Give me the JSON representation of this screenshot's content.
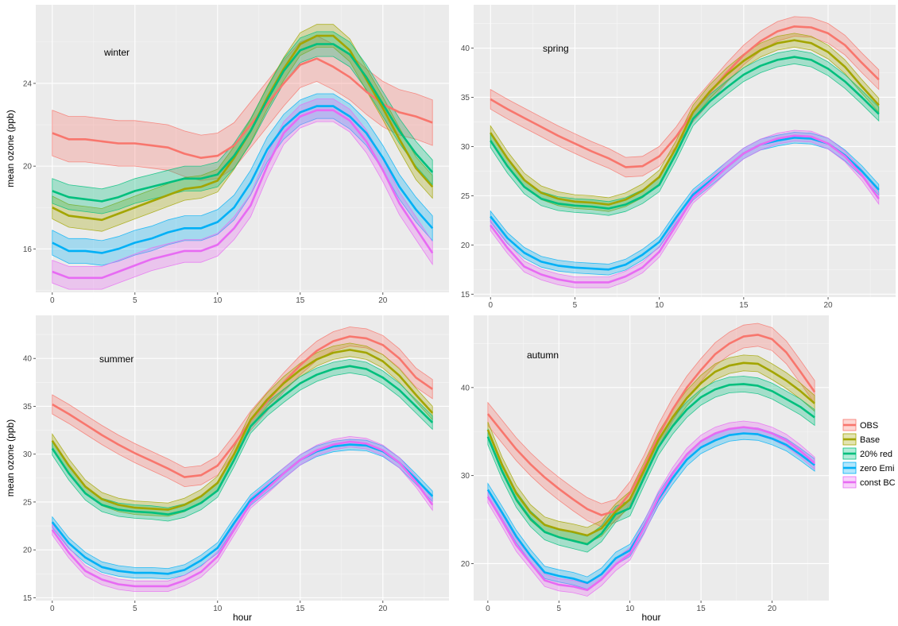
{
  "legend": {
    "series": [
      {
        "name": "OBS",
        "color": "#F8766D"
      },
      {
        "name": "Base",
        "color": "#A3A500"
      },
      {
        "name": "20% red",
        "color": "#00BF7D"
      },
      {
        "name": "zero Emi",
        "color": "#00B0F6"
      },
      {
        "name": "const BC",
        "color": "#E76BF3"
      }
    ]
  },
  "chart_data": [
    {
      "type": "line",
      "panel": "winter",
      "annotation": "winter",
      "ylabel": "mean ozone (ppb)",
      "xlabel": "",
      "xlim": [
        -1,
        24
      ],
      "ylim": [
        13.9,
        27.8
      ],
      "xticks": [
        0,
        5,
        10,
        15,
        20
      ],
      "yticks": [
        16,
        20,
        24
      ],
      "grid": true,
      "x": [
        0,
        1,
        2,
        3,
        4,
        5,
        6,
        7,
        8,
        9,
        10,
        11,
        12,
        13,
        14,
        15,
        16,
        17,
        18,
        19,
        20,
        21,
        22,
        23
      ],
      "series": [
        {
          "name": "OBS",
          "values": [
            21.6,
            21.3,
            21.3,
            21.2,
            21.1,
            21.1,
            21.0,
            20.9,
            20.6,
            20.4,
            20.5,
            21.0,
            22.0,
            23.0,
            24.0,
            24.9,
            25.2,
            24.8,
            24.3,
            23.6,
            23.0,
            22.6,
            22.4,
            22.1
          ],
          "band": 1.1
        },
        {
          "name": "Base",
          "values": [
            18.0,
            17.6,
            17.5,
            17.4,
            17.7,
            18.0,
            18.3,
            18.6,
            18.9,
            19.0,
            19.3,
            20.4,
            21.7,
            23.3,
            24.7,
            25.9,
            26.3,
            26.3,
            25.6,
            24.2,
            22.8,
            21.3,
            19.9,
            19.0
          ],
          "band": 0.55
        },
        {
          "name": "20% red",
          "values": [
            18.8,
            18.5,
            18.4,
            18.3,
            18.5,
            18.8,
            19.0,
            19.2,
            19.4,
            19.4,
            19.6,
            20.5,
            21.7,
            23.2,
            24.6,
            25.6,
            25.9,
            25.9,
            25.4,
            24.3,
            23.0,
            21.7,
            20.6,
            19.7
          ],
          "band": 0.6
        },
        {
          "name": "zero Emi",
          "values": [
            16.3,
            15.9,
            15.9,
            15.8,
            16.0,
            16.3,
            16.5,
            16.8,
            17.0,
            17.0,
            17.3,
            18.0,
            19.2,
            20.8,
            21.9,
            22.6,
            22.9,
            22.9,
            22.4,
            21.6,
            20.4,
            19.0,
            17.9,
            17.0
          ],
          "band": 0.6
        },
        {
          "name": "const BC",
          "values": [
            14.9,
            14.6,
            14.6,
            14.6,
            14.9,
            15.2,
            15.5,
            15.7,
            15.9,
            15.9,
            16.2,
            17.0,
            18.1,
            20.0,
            21.6,
            22.4,
            22.7,
            22.7,
            22.2,
            21.2,
            19.8,
            18.2,
            17.0,
            15.8
          ],
          "band": 0.55
        }
      ]
    },
    {
      "type": "line",
      "panel": "spring",
      "annotation": "spring",
      "ylabel": "",
      "xlabel": "",
      "xlim": [
        -1,
        24
      ],
      "ylim": [
        14.7,
        44.4
      ],
      "xticks": [
        0,
        5,
        10,
        15,
        20
      ],
      "yticks": [
        15,
        20,
        25,
        30,
        35,
        40
      ],
      "grid": true,
      "x": [
        0,
        1,
        2,
        3,
        4,
        5,
        6,
        7,
        8,
        9,
        10,
        11,
        12,
        13,
        14,
        15,
        16,
        17,
        18,
        19,
        20,
        21,
        22,
        23
      ],
      "series": [
        {
          "name": "OBS",
          "values": [
            34.8,
            33.8,
            32.9,
            32.0,
            31.1,
            30.3,
            29.5,
            28.8,
            27.9,
            28.0,
            29.0,
            31.0,
            33.5,
            35.5,
            37.5,
            39.3,
            40.7,
            41.7,
            42.2,
            42.1,
            41.5,
            40.3,
            38.5,
            36.8
          ],
          "band": 1.0
        },
        {
          "name": "Base",
          "values": [
            31.4,
            28.8,
            26.6,
            25.3,
            24.7,
            24.4,
            24.3,
            24.1,
            24.6,
            25.5,
            26.9,
            29.9,
            33.5,
            35.6,
            37.3,
            38.7,
            39.8,
            40.5,
            40.8,
            40.5,
            39.6,
            38.1,
            36.1,
            34.2
          ],
          "band": 0.7
        },
        {
          "name": "20% red",
          "values": [
            30.6,
            28.0,
            25.9,
            24.7,
            24.2,
            24.0,
            23.9,
            23.7,
            24.1,
            24.9,
            26.1,
            29.3,
            32.8,
            34.6,
            36.0,
            37.3,
            38.2,
            38.8,
            39.1,
            38.8,
            37.9,
            36.6,
            35.0,
            33.3
          ],
          "band": 0.7
        },
        {
          "name": "zero Emi",
          "values": [
            22.9,
            20.7,
            19.2,
            18.3,
            17.9,
            17.7,
            17.6,
            17.5,
            18.0,
            19.0,
            20.3,
            22.8,
            25.1,
            26.5,
            27.9,
            29.3,
            30.2,
            30.6,
            30.9,
            30.8,
            30.3,
            29.1,
            27.5,
            25.6
          ],
          "band": 0.55
        },
        {
          "name": "const BC",
          "values": [
            22.0,
            19.7,
            17.8,
            17.0,
            16.5,
            16.2,
            16.2,
            16.2,
            16.8,
            17.7,
            19.3,
            22.0,
            24.8,
            26.3,
            27.9,
            29.3,
            30.2,
            30.8,
            31.1,
            31.0,
            30.3,
            29.0,
            27.1,
            24.7
          ],
          "band": 0.55
        }
      ]
    },
    {
      "type": "line",
      "panel": "summer",
      "annotation": "summer",
      "ylabel": "mean ozone (ppb)",
      "xlabel": "hour",
      "xlim": [
        -1,
        24
      ],
      "ylim": [
        14.7,
        44.5
      ],
      "xticks": [
        0,
        5,
        10,
        15,
        20
      ],
      "yticks": [
        15,
        20,
        25,
        30,
        35,
        40
      ],
      "grid": true,
      "x": [
        0,
        1,
        2,
        3,
        4,
        5,
        6,
        7,
        8,
        9,
        10,
        11,
        12,
        13,
        14,
        15,
        16,
        17,
        18,
        19,
        20,
        21,
        22,
        23
      ],
      "series": [
        {
          "name": "OBS",
          "values": [
            35.2,
            34.2,
            33.1,
            32.0,
            31.0,
            30.1,
            29.3,
            28.5,
            27.6,
            27.8,
            28.8,
            31.0,
            33.5,
            35.5,
            37.5,
            39.3,
            40.8,
            41.8,
            42.3,
            42.1,
            41.4,
            40.0,
            38.0,
            36.8
          ],
          "band": 1.0
        },
        {
          "name": "Base",
          "values": [
            31.4,
            28.8,
            26.6,
            25.3,
            24.7,
            24.4,
            24.3,
            24.2,
            24.7,
            25.6,
            27.0,
            30.0,
            33.6,
            35.7,
            37.4,
            38.8,
            39.9,
            40.6,
            40.9,
            40.6,
            39.7,
            38.2,
            36.2,
            34.3
          ],
          "band": 0.7
        },
        {
          "name": "20% red",
          "values": [
            30.6,
            28.0,
            25.9,
            24.7,
            24.2,
            24.0,
            23.9,
            23.7,
            24.1,
            24.9,
            26.2,
            29.4,
            32.9,
            34.7,
            36.1,
            37.4,
            38.3,
            38.9,
            39.2,
            38.9,
            38.0,
            36.7,
            35.0,
            33.3
          ],
          "band": 0.7
        },
        {
          "name": "zero Emi",
          "values": [
            22.9,
            20.7,
            19.2,
            18.2,
            17.8,
            17.6,
            17.6,
            17.5,
            17.9,
            18.9,
            20.2,
            22.8,
            25.2,
            26.6,
            28.0,
            29.4,
            30.3,
            30.8,
            31.0,
            30.9,
            30.3,
            29.1,
            27.4,
            25.6
          ],
          "band": 0.55
        },
        {
          "name": "const BC",
          "values": [
            22.1,
            19.7,
            17.8,
            16.9,
            16.4,
            16.2,
            16.2,
            16.2,
            16.8,
            17.7,
            19.3,
            22.1,
            24.9,
            26.4,
            28.0,
            29.4,
            30.4,
            31.0,
            31.3,
            31.1,
            30.4,
            29.1,
            27.1,
            24.7
          ],
          "band": 0.55
        }
      ]
    },
    {
      "type": "line",
      "panel": "autumn",
      "annotation": "autumn",
      "ylabel": "",
      "xlabel": "hour",
      "xlim": [
        -1,
        24
      ],
      "ylim": [
        15.8,
        48.2
      ],
      "xticks": [
        0,
        5,
        10,
        15,
        20
      ],
      "yticks": [
        20,
        30,
        40
      ],
      "grid": true,
      "x": [
        0,
        1,
        2,
        3,
        4,
        5,
        6,
        7,
        8,
        9,
        10,
        11,
        12,
        13,
        14,
        15,
        16,
        17,
        18,
        19,
        20,
        21,
        22,
        23
      ],
      "series": [
        {
          "name": "OBS",
          "values": [
            37.0,
            35.0,
            33.0,
            31.3,
            29.8,
            28.5,
            27.3,
            26.2,
            25.5,
            26.0,
            28.0,
            31.0,
            34.5,
            37.5,
            40.0,
            42.0,
            43.8,
            45.0,
            45.8,
            46.0,
            45.5,
            44.0,
            41.8,
            39.5
          ],
          "band": 1.3
        },
        {
          "name": "Base",
          "values": [
            35.2,
            31.2,
            28.0,
            25.8,
            24.4,
            23.9,
            23.6,
            23.2,
            24.0,
            25.9,
            27.3,
            30.6,
            34.0,
            36.6,
            38.8,
            40.5,
            41.8,
            42.5,
            42.8,
            42.7,
            41.8,
            40.8,
            39.6,
            38.2
          ],
          "band": 0.9
        },
        {
          "name": "20% red",
          "values": [
            34.4,
            30.5,
            27.3,
            25.1,
            23.6,
            23.0,
            22.6,
            22.2,
            23.4,
            25.6,
            26.3,
            29.8,
            33.2,
            35.6,
            37.5,
            38.9,
            39.8,
            40.3,
            40.4,
            40.2,
            39.6,
            38.7,
            37.8,
            36.6
          ],
          "band": 0.9
        },
        {
          "name": "zero Emi",
          "values": [
            28.4,
            25.8,
            23.1,
            20.9,
            19.0,
            18.6,
            18.3,
            17.8,
            18.8,
            20.6,
            21.5,
            24.2,
            27.3,
            29.7,
            31.8,
            33.2,
            34.0,
            34.6,
            34.8,
            34.7,
            34.2,
            33.5,
            32.4,
            31.2
          ],
          "band": 0.7
        },
        {
          "name": "const BC",
          "values": [
            27.6,
            24.9,
            22.1,
            20.1,
            18.1,
            17.6,
            17.4,
            17.0,
            18.2,
            19.9,
            21.1,
            24.1,
            27.5,
            30.2,
            32.4,
            33.9,
            34.8,
            35.3,
            35.5,
            35.3,
            34.8,
            34.0,
            32.8,
            31.4
          ],
          "band": 0.7
        }
      ]
    }
  ]
}
